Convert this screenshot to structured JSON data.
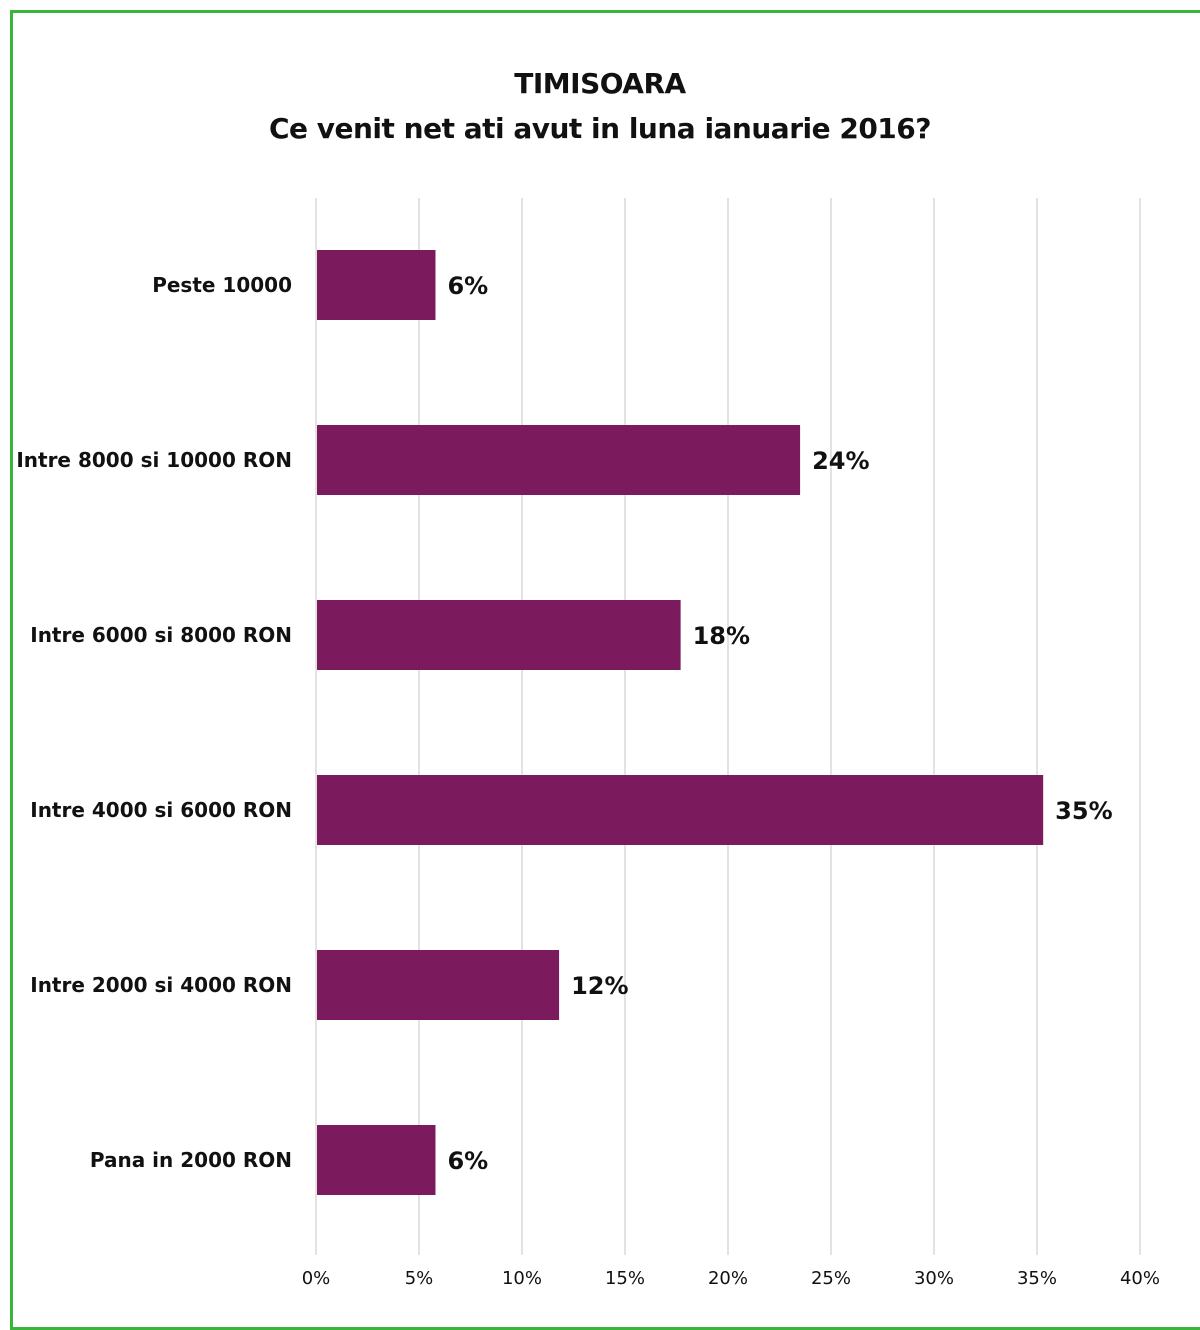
{
  "chart_data": {
    "type": "bar",
    "orientation": "horizontal",
    "title": "TIMISOARA",
    "subtitle": "Ce venit net ati avut in luna ianuarie 2016?",
    "categories": [
      "Peste 10000",
      "Intre 8000 si 10000 RON",
      "Intre 6000 si 8000 RON",
      "Intre 4000 si 6000 RON",
      "Intre 2000 si 4000 RON",
      "Pana in 2000 RON"
    ],
    "values": [
      5.8,
      23.5,
      17.7,
      35.3,
      11.8,
      5.8
    ],
    "data_labels": [
      "6%",
      "24%",
      "18%",
      "35%",
      "12%",
      "6%"
    ],
    "xlim": [
      0,
      40
    ],
    "xticks": [
      0,
      5,
      10,
      15,
      20,
      25,
      30,
      35,
      40
    ],
    "xtick_labels": [
      "0%",
      "5%",
      "10%",
      "15%",
      "20%",
      "25%",
      "30%",
      "35%",
      "40%"
    ],
    "grid": true,
    "legend": "none",
    "colors": {
      "bar": "#7b1a5c",
      "grid": "#d9d9d9",
      "frame": "#3ab53a",
      "text": "#111111"
    }
  }
}
